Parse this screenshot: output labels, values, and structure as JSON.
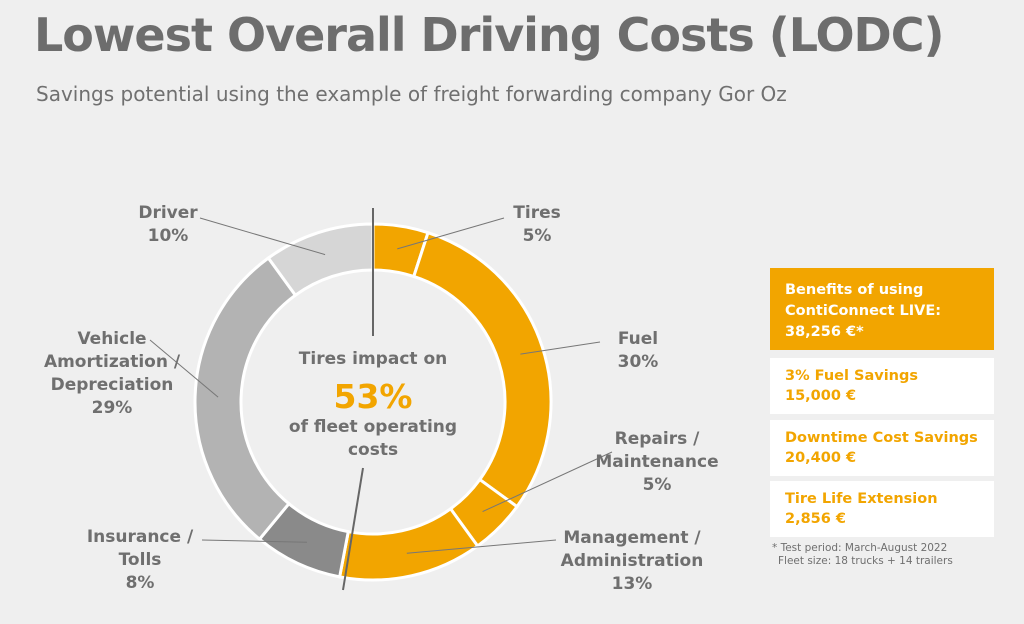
{
  "header": {
    "title": "Lowest Overall Driving Costs (LODC)",
    "subtitle": "Savings potential using the example of freight forwarding company Gor Oz"
  },
  "chart_data": {
    "type": "pie",
    "variant": "donut",
    "categories": [
      "Tires",
      "Fuel",
      "Repairs / Maintenance",
      "Management / Administration",
      "Insurance / Tolls",
      "Vehicle Amortization / Depreciation",
      "Driver"
    ],
    "values": [
      5,
      30,
      5,
      13,
      8,
      29,
      10
    ],
    "unit": "%",
    "label_lines": [
      [
        "Tires",
        "5%"
      ],
      [
        "Fuel",
        "30%"
      ],
      [
        "Repairs /",
        "Maintenance",
        "5%"
      ],
      [
        "Management /",
        "Administration",
        "13%"
      ],
      [
        "Insurance /",
        "Tolls",
        "8%"
      ],
      [
        "Vehicle",
        "Amortization /",
        "Depreciation",
        "29%"
      ],
      [
        "Driver",
        "10%"
      ]
    ],
    "colors": [
      "#f2a500",
      "#f2a500",
      "#f2a500",
      "#f2a500",
      "#8a8a8a",
      "#b3b3b3",
      "#d6d6d6"
    ],
    "center_text": {
      "line1": "Tires impact on",
      "value": "53%",
      "line2": "of fleet operating",
      "line3": "costs"
    }
  },
  "benefits": {
    "heading_lines": [
      "Benefits of using",
      "ContiConnect LIVE:",
      "38,256 €*"
    ],
    "items": [
      {
        "label": "3% Fuel Savings",
        "value": "15,000 €"
      },
      {
        "label": "Downtime Cost Savings",
        "value": "20,400 €"
      },
      {
        "label": "Tire Life Extension",
        "value": "2,856 €"
      }
    ],
    "footnote_lines": [
      "* Test period: March-August 2022",
      "Fleet size: 18 trucks + 14 trailers"
    ]
  }
}
